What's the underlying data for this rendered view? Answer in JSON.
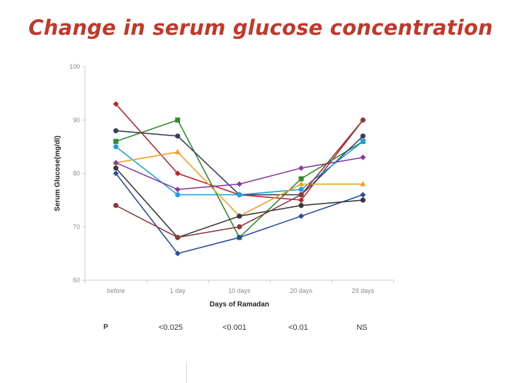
{
  "slide": {
    "title": "Change in serum glucose concentration"
  },
  "chart_data": {
    "type": "line",
    "title": "Change in serum glucose concentration",
    "xlabel": "Days of Ramadan",
    "ylabel": "Serum Glucose(mg/dl)",
    "categories": [
      "before",
      "1 day",
      "10 days",
      "20 days",
      "29 days"
    ],
    "ylim": [
      60,
      100
    ],
    "yticks": [
      60,
      70,
      80,
      90,
      100
    ],
    "series": [
      {
        "name": "red",
        "color": "#c0222c",
        "marker": "diamond",
        "values": [
          93,
          80,
          76,
          75,
          90
        ]
      },
      {
        "name": "green",
        "color": "#2e8b2e",
        "marker": "square",
        "values": [
          86,
          90,
          68,
          79,
          86
        ]
      },
      {
        "name": "navy",
        "color": "#3a3f5c",
        "marker": "circle",
        "values": [
          88,
          87,
          76,
          76,
          87
        ]
      },
      {
        "name": "cyan",
        "color": "#1ba1e2",
        "marker": "circle",
        "values": [
          85,
          76,
          76,
          77,
          86
        ]
      },
      {
        "name": "orange",
        "color": "#f0a020",
        "marker": "triangle",
        "values": [
          82,
          84,
          72,
          78,
          78
        ]
      },
      {
        "name": "purple",
        "color": "#8a3c9e",
        "marker": "diamond",
        "values": [
          82,
          77,
          78,
          81,
          83
        ]
      },
      {
        "name": "blue",
        "color": "#2a4e9a",
        "marker": "diamond",
        "values": [
          80,
          65,
          68,
          72,
          76
        ]
      },
      {
        "name": "dark",
        "color": "#3a3a3a",
        "marker": "circle",
        "values": [
          81,
          68,
          72,
          74,
          75
        ]
      },
      {
        "name": "brown",
        "color": "#8b3a3a",
        "marker": "circle",
        "values": [
          74,
          68,
          70,
          76,
          90
        ]
      }
    ],
    "p_values": {
      "label": "P",
      "values": [
        "<0.025",
        "<0.001",
        "<0.01",
        "NS"
      ]
    }
  }
}
